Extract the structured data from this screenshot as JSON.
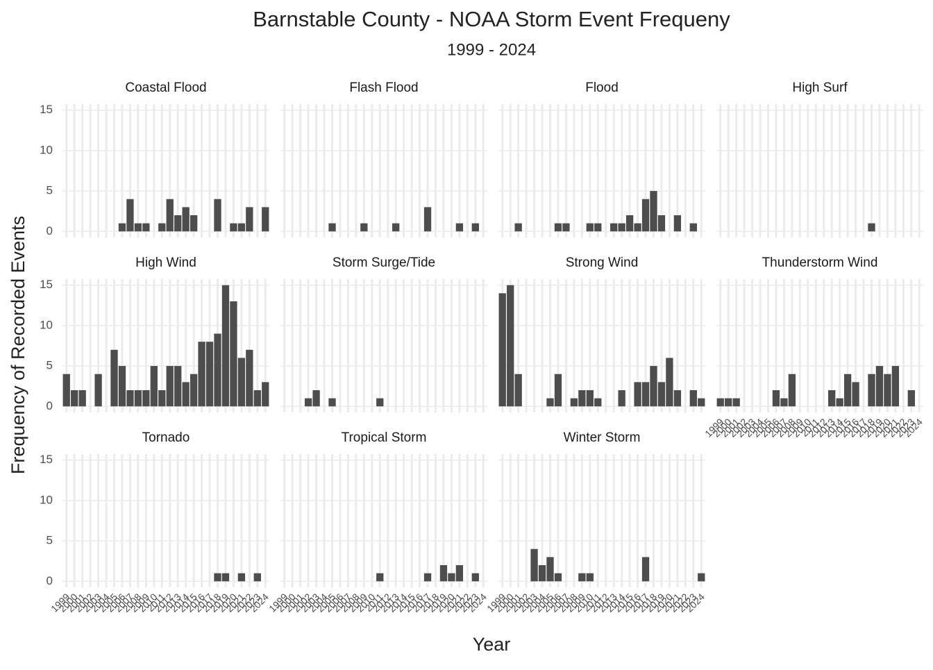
{
  "chart_data": {
    "type": "bar",
    "title": "Barnstable County - NOAA Storm Event Frequeny",
    "subtitle": "1999 - 2024",
    "x_label": "Year",
    "y_label": "Frequency of Recorded Events",
    "x": [
      1999,
      2000,
      2001,
      2002,
      2003,
      2004,
      2005,
      2006,
      2007,
      2008,
      2009,
      2010,
      2011,
      2012,
      2013,
      2014,
      2015,
      2016,
      2017,
      2018,
      2019,
      2020,
      2021,
      2022,
      2023,
      2024
    ],
    "ylim": [
      -0.75,
      15.75
    ],
    "yticks": [
      0,
      5,
      10,
      15
    ],
    "grid": true,
    "color": "#4d4d4d",
    "series": [
      {
        "name": "Coastal Flood",
        "values": [
          0,
          0,
          0,
          0,
          0,
          0,
          0,
          1,
          4,
          1,
          1,
          0,
          1,
          4,
          2,
          3,
          2,
          0,
          0,
          4,
          0,
          1,
          1,
          3,
          0,
          3
        ]
      },
      {
        "name": "Flash Flood",
        "values": [
          0,
          0,
          0,
          0,
          0,
          0,
          1,
          0,
          0,
          0,
          1,
          0,
          0,
          0,
          1,
          0,
          0,
          0,
          3,
          0,
          0,
          0,
          1,
          0,
          1,
          0
        ]
      },
      {
        "name": "Flood",
        "values": [
          0,
          0,
          1,
          0,
          0,
          0,
          0,
          1,
          1,
          0,
          0,
          1,
          1,
          0,
          1,
          1,
          2,
          1,
          4,
          5,
          2,
          0,
          2,
          0,
          1,
          0
        ]
      },
      {
        "name": "High Surf",
        "values": [
          0,
          0,
          0,
          0,
          0,
          0,
          0,
          0,
          0,
          0,
          0,
          0,
          0,
          0,
          0,
          0,
          0,
          0,
          0,
          1,
          0,
          0,
          0,
          0,
          0,
          0
        ]
      },
      {
        "name": "High Wind",
        "values": [
          4,
          2,
          2,
          0,
          4,
          0,
          7,
          5,
          2,
          2,
          2,
          5,
          2,
          5,
          5,
          3,
          4,
          8,
          8,
          9,
          15,
          13,
          6,
          7,
          2,
          3
        ]
      },
      {
        "name": "Storm Surge/Tide",
        "values": [
          0,
          0,
          0,
          1,
          2,
          0,
          1,
          0,
          0,
          0,
          0,
          0,
          1,
          0,
          0,
          0,
          0,
          0,
          0,
          0,
          0,
          0,
          0,
          0,
          0,
          0
        ]
      },
      {
        "name": "Strong Wind",
        "values": [
          14,
          15,
          4,
          0,
          0,
          0,
          1,
          4,
          0,
          1,
          2,
          2,
          1,
          0,
          0,
          2,
          0,
          3,
          3,
          5,
          3,
          6,
          2,
          0,
          2,
          1
        ]
      },
      {
        "name": "Thunderstorm Wind",
        "values": [
          1,
          1,
          1,
          0,
          0,
          0,
          0,
          2,
          1,
          4,
          0,
          0,
          0,
          0,
          2,
          1,
          4,
          3,
          0,
          4,
          5,
          4,
          5,
          0,
          2,
          0
        ]
      },
      {
        "name": "Tornado",
        "values": [
          0,
          0,
          0,
          0,
          0,
          0,
          0,
          0,
          0,
          0,
          0,
          0,
          0,
          0,
          0,
          0,
          0,
          0,
          0,
          1,
          1,
          0,
          1,
          0,
          1,
          0
        ]
      },
      {
        "name": "Tropical Storm",
        "values": [
          0,
          0,
          0,
          0,
          0,
          0,
          0,
          0,
          0,
          0,
          0,
          0,
          1,
          0,
          0,
          0,
          0,
          0,
          1,
          0,
          2,
          1,
          2,
          0,
          1,
          0
        ]
      },
      {
        "name": "Winter Storm",
        "values": [
          0,
          0,
          0,
          0,
          4,
          2,
          3,
          1,
          0,
          0,
          1,
          1,
          0,
          0,
          0,
          0,
          0,
          0,
          3,
          0,
          0,
          0,
          0,
          0,
          0,
          1
        ]
      }
    ]
  }
}
